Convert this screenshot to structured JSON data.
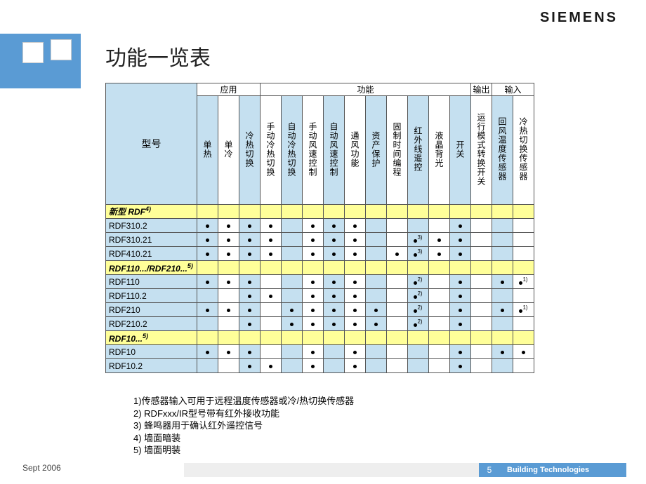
{
  "logo": "SIEMENS",
  "title": "功能一览表",
  "groups": [
    {
      "label": "应用",
      "span": 3
    },
    {
      "label": "功能",
      "span": 10
    },
    {
      "label": "输出",
      "span": 1
    },
    {
      "label": "输入",
      "span": 3
    }
  ],
  "model_header": "型号",
  "feature_columns": [
    "单热",
    "单冷",
    "冷热切换",
    "手动冷热切换",
    "自动冷热切换",
    "手动风速控制",
    "自动风速控制",
    "通风功能",
    "资产保护",
    "固制时间编程",
    "红外线遥控",
    "液晶背光",
    "开关",
    "运行模式转换开关",
    "回风温度传感器",
    "冷热切换传感器"
  ],
  "blue_cols": [
    0,
    2,
    4,
    6,
    8,
    10,
    12,
    14,
    16
  ],
  "sections": [
    {
      "header": "新型 RDF",
      "sup": "4)",
      "rows": [
        {
          "name": "RDF310.2",
          "cells": [
            "●",
            "●",
            "●",
            "●",
            "",
            "●",
            "●",
            "●",
            "",
            "",
            "",
            "",
            "●",
            "",
            "",
            ""
          ]
        },
        {
          "name": "RDF310.21",
          "cells": [
            "●",
            "●",
            "●",
            "●",
            "",
            "●",
            "●",
            "●",
            "",
            "",
            "●3)",
            "●",
            "●",
            "",
            "",
            ""
          ]
        },
        {
          "name": "RDF410.21",
          "cells": [
            "●",
            "●",
            "●",
            "●",
            "",
            "●",
            "●",
            "●",
            "",
            "●",
            "●3)",
            "●",
            "●",
            "",
            "",
            ""
          ]
        }
      ]
    },
    {
      "header": "RDF110.../RDF210...",
      "sup": "5)",
      "rows": [
        {
          "name": "RDF110",
          "cells": [
            "●",
            "●",
            "●",
            "",
            "",
            "●",
            "●",
            "●",
            "",
            "",
            "●2)",
            "",
            "●",
            "",
            "●",
            "●1)"
          ]
        },
        {
          "name": "RDF110.2",
          "cells": [
            "",
            "",
            "●",
            "●",
            "",
            "●",
            "●",
            "●",
            "",
            "",
            "●2)",
            "",
            "●",
            "",
            "",
            ""
          ]
        },
        {
          "name": "RDF210",
          "cells": [
            "●",
            "●",
            "●",
            "",
            "●",
            "●",
            "●",
            "●",
            "●",
            "",
            "●2)",
            "",
            "●",
            "",
            "●",
            "●1)"
          ]
        },
        {
          "name": "RDF210.2",
          "cells": [
            "",
            "",
            "●",
            "",
            "●",
            "●",
            "●",
            "●",
            "●",
            "",
            "●2)",
            "",
            "●",
            "",
            "",
            ""
          ]
        }
      ]
    },
    {
      "header": "RDF10...",
      "sup": "5)",
      "rows": [
        {
          "name": "RDF10",
          "cells": [
            "●",
            "●",
            "●",
            "",
            "",
            "●",
            "",
            "●",
            "",
            "",
            "",
            "",
            "●",
            "",
            "●",
            "●"
          ]
        },
        {
          "name": "RDF10.2",
          "cells": [
            "",
            "",
            "●",
            "●",
            "",
            "●",
            "",
            "●",
            "",
            "",
            "",
            "",
            "●",
            "",
            "",
            ""
          ]
        }
      ]
    }
  ],
  "footnotes": [
    "1)传感器输入可用于远程温度传感器或冷/热切换传感器",
    "2) RDFxxx/IR型号带有红外接收功能",
    "3) 蜂鸣器用于确认红外遥控信号",
    "4) 墙面暗装",
    "5) 墙面明装"
  ],
  "footer": {
    "date": "Sept 2006",
    "page": "5",
    "brand": "Building Technologies"
  },
  "colors": {
    "blue": "#c5e0f0",
    "yellow": "#ffff99",
    "accent": "#5a9bd4"
  }
}
